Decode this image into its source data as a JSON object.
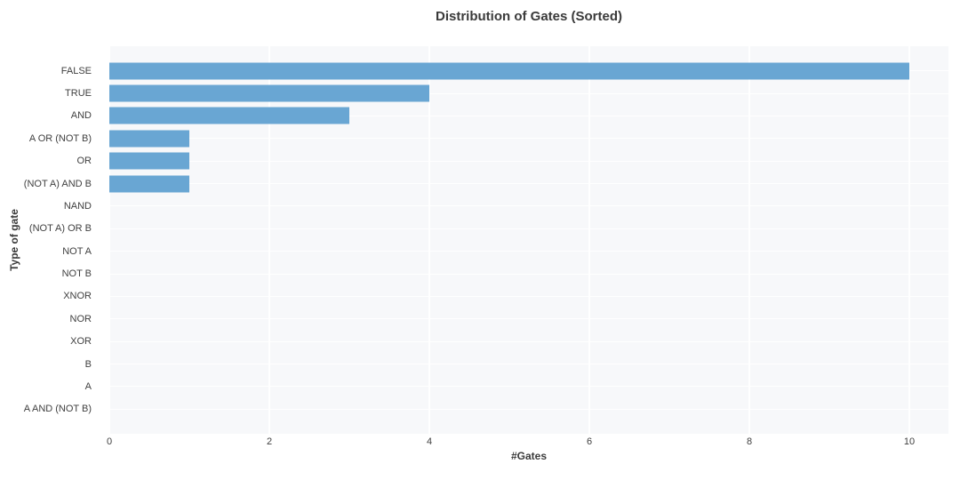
{
  "chart_data": {
    "type": "bar",
    "orientation": "horizontal",
    "title": "Distribution of Gates (Sorted)",
    "xlabel": "#Gates",
    "ylabel": "Type of gate",
    "categories": [
      "FALSE",
      "TRUE",
      "AND",
      "A OR (NOT B)",
      "OR",
      "(NOT A) AND B",
      "NAND",
      "(NOT A) OR B",
      "NOT A",
      "NOT B",
      "XNOR",
      "NOR",
      "XOR",
      "B",
      "A",
      "A AND (NOT B)"
    ],
    "values": [
      10,
      4,
      3,
      1,
      1,
      1,
      0,
      0,
      0,
      0,
      0,
      0,
      0,
      0,
      0,
      0
    ],
    "xticks": [
      0,
      2,
      4,
      6,
      8,
      10
    ],
    "xlim": [
      0,
      10.5
    ],
    "grid": true,
    "legend": "none",
    "colors": {
      "bar": "#69a6d3",
      "plot_background": "#f7f8fa",
      "gridline": "#ffffff",
      "text": "#3a3a3a"
    }
  }
}
